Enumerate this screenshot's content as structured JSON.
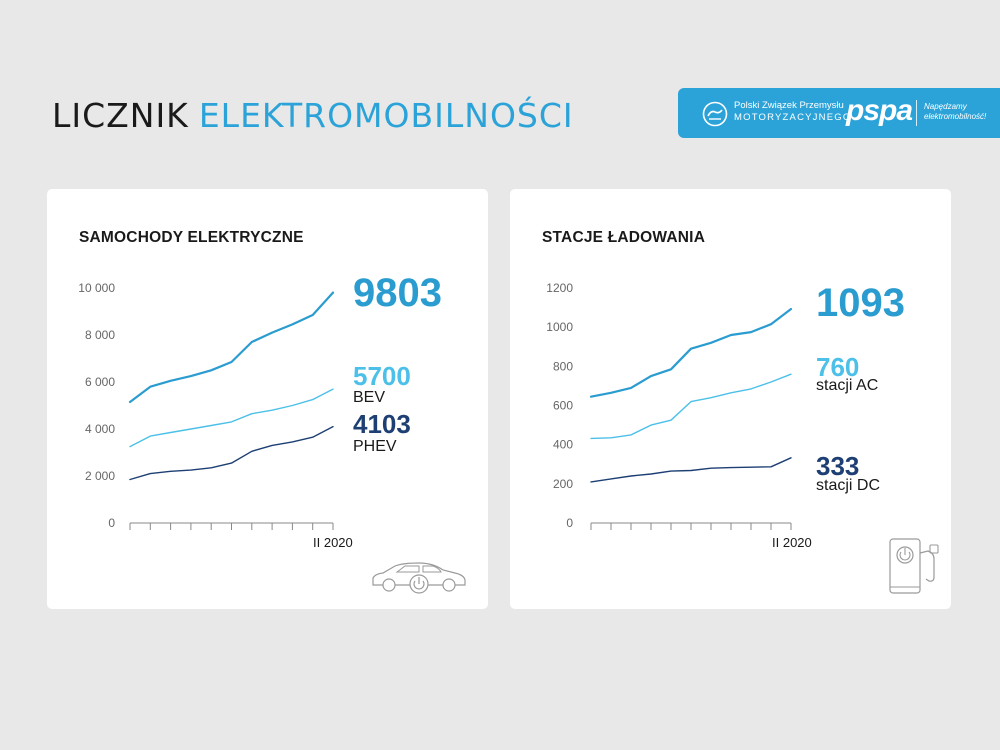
{
  "header": {
    "title_part1": "LICZNIK",
    "title_part2": "ELEKTROMOBILNOŚCI",
    "org_line1": "Polski Związek Przemysłu",
    "org_line2": "MOTORYZACYJNEGO",
    "pspa": "pspa",
    "slogan_line1": "Napędzamy",
    "slogan_line2": "elektromobilność!"
  },
  "colors": {
    "total": "#2a9cd0",
    "light": "#4cc0e8",
    "dark": "#1d3f73",
    "axis": "#666666"
  },
  "left": {
    "title": "SAMOCHODY ELEKTRYCZNE",
    "total_value": "9803",
    "a_value": "5700",
    "a_label": "BEV",
    "b_value": "4103",
    "b_label": "PHEV",
    "period": "II 2020",
    "icon": "car-power-icon"
  },
  "right": {
    "title": "STACJE ŁADOWANIA",
    "total_value": "1093",
    "a_value": "760",
    "a_label": "stacji AC",
    "b_value": "333",
    "b_label": "stacji DC",
    "period": "II 2020",
    "icon": "charging-station-icon"
  },
  "chart_data": [
    {
      "type": "line",
      "title": "SAMOCHODY ELEKTRYCZNE",
      "ylim": [
        0,
        10000
      ],
      "yticks": [
        "0",
        "2 000",
        "4 000",
        "6 000",
        "8 000",
        "10 000"
      ],
      "ytick_values": [
        0,
        2000,
        4000,
        6000,
        8000,
        10000
      ],
      "x_last_label": "II 2020",
      "series": [
        {
          "name": "",
          "color": "total",
          "values": [
            5150,
            5800,
            6050,
            6250,
            6500,
            6850,
            7700,
            8100,
            8450,
            8850,
            9803
          ]
        },
        {
          "name": "BEV",
          "color": "light",
          "values": [
            3250,
            3700,
            3850,
            4000,
            4150,
            4300,
            4650,
            4800,
            5000,
            5250,
            5700
          ]
        },
        {
          "name": "PHEV",
          "color": "dark",
          "values": [
            1850,
            2100,
            2200,
            2250,
            2350,
            2550,
            3050,
            3300,
            3450,
            3650,
            4103
          ]
        }
      ]
    },
    {
      "type": "line",
      "title": "STACJE ŁADOWANIA",
      "ylim": [
        0,
        1200
      ],
      "yticks": [
        "0",
        "200",
        "400",
        "600",
        "800",
        "1000",
        "1200"
      ],
      "ytick_values": [
        0,
        200,
        400,
        600,
        800,
        1000,
        1200
      ],
      "x_last_label": "II 2020",
      "series": [
        {
          "name": "",
          "color": "total",
          "values": [
            645,
            665,
            690,
            750,
            785,
            890,
            920,
            960,
            975,
            1015,
            1093
          ]
        },
        {
          "name": "stacji AC",
          "color": "light",
          "values": [
            432,
            435,
            450,
            500,
            525,
            620,
            640,
            665,
            685,
            720,
            760
          ]
        },
        {
          "name": "stacji DC",
          "color": "dark",
          "values": [
            210,
            225,
            240,
            250,
            265,
            268,
            280,
            283,
            285,
            287,
            333
          ]
        }
      ]
    }
  ]
}
